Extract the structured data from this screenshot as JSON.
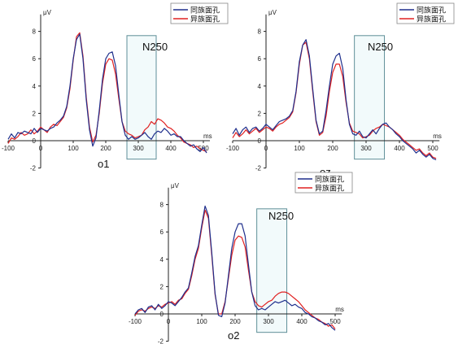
{
  "chart_data": [
    {
      "type": "line",
      "channel": "o1",
      "xunit": "ms",
      "yunit": "μV",
      "xlim": [
        -100,
        520
      ],
      "ylim": [
        -2,
        9
      ],
      "xticks": [
        -100,
        0,
        100,
        200,
        300,
        400,
        500
      ],
      "yticks": [
        -2,
        0,
        2,
        4,
        6,
        8
      ],
      "window_label": "N250",
      "window": [
        265,
        355
      ],
      "legend": [
        "同族面孔",
        "异族面孔"
      ],
      "series": [
        {
          "name": "同族面孔",
          "color": "#1f2f8c",
          "x": [
            -100,
            -90,
            -80,
            -70,
            -60,
            -50,
            -40,
            -30,
            -20,
            -10,
            0,
            10,
            20,
            30,
            40,
            50,
            60,
            70,
            80,
            90,
            100,
            110,
            120,
            130,
            140,
            150,
            160,
            170,
            180,
            190,
            200,
            210,
            220,
            230,
            240,
            250,
            260,
            270,
            280,
            290,
            300,
            310,
            320,
            330,
            340,
            350,
            360,
            370,
            380,
            390,
            400,
            410,
            420,
            430,
            440,
            450,
            460,
            470,
            480,
            490,
            500,
            510
          ],
          "y": [
            0.1,
            0.5,
            0.2,
            0.6,
            0.5,
            0.7,
            0.6,
            0.5,
            0.9,
            0.6,
            0.9,
            0.8,
            0.7,
            0.9,
            1.0,
            1.3,
            1.5,
            1.8,
            2.5,
            4.0,
            6.0,
            7.4,
            7.8,
            6.0,
            3.0,
            0.8,
            -0.4,
            0.2,
            2.2,
            4.5,
            6.0,
            6.4,
            6.5,
            5.5,
            3.4,
            1.4,
            0.4,
            0.1,
            0.3,
            0.1,
            0.2,
            0.4,
            0.6,
            0.3,
            0.1,
            0.5,
            0.7,
            0.6,
            0.9,
            0.7,
            0.4,
            0.5,
            0.3,
            0.3,
            0.0,
            -0.2,
            -0.4,
            -0.3,
            -0.6,
            -0.8,
            -0.5,
            -0.9
          ]
        },
        {
          "name": "异族面孔",
          "color": "#e02020",
          "x": [
            -100,
            -90,
            -80,
            -70,
            -60,
            -50,
            -40,
            -30,
            -20,
            -10,
            0,
            10,
            20,
            30,
            40,
            50,
            60,
            70,
            80,
            90,
            100,
            110,
            120,
            130,
            140,
            150,
            160,
            170,
            180,
            190,
            200,
            210,
            220,
            230,
            240,
            250,
            260,
            270,
            280,
            290,
            300,
            310,
            320,
            330,
            340,
            350,
            360,
            370,
            380,
            390,
            400,
            410,
            420,
            430,
            440,
            450,
            460,
            470,
            480,
            490,
            500,
            510
          ],
          "y": [
            -0.2,
            0.2,
            0.1,
            0.3,
            0.6,
            0.4,
            0.5,
            0.8,
            0.5,
            0.7,
            1.0,
            0.8,
            0.6,
            1.0,
            1.2,
            1.1,
            1.4,
            1.7,
            2.4,
            3.8,
            5.9,
            7.6,
            7.9,
            6.2,
            3.2,
            1.0,
            -0.1,
            0.4,
            2.0,
            4.2,
            5.6,
            6.0,
            5.9,
            4.9,
            3.1,
            1.4,
            0.7,
            0.5,
            0.4,
            0.2,
            0.3,
            0.4,
            0.8,
            1.0,
            1.4,
            1.2,
            1.6,
            1.5,
            1.3,
            1.0,
            0.9,
            0.7,
            0.4,
            0.2,
            -0.1,
            -0.2,
            -0.3,
            -0.5,
            -0.4,
            -0.6,
            -0.7,
            -0.8
          ]
        }
      ]
    },
    {
      "type": "line",
      "channel": "oz",
      "xunit": "ms",
      "yunit": "μV",
      "xlim": [
        -100,
        520
      ],
      "ylim": [
        -2,
        9
      ],
      "xticks": [
        -100,
        0,
        100,
        200,
        300,
        400,
        500
      ],
      "yticks": [
        -2,
        0,
        2,
        4,
        6,
        8
      ],
      "window_label": "N250",
      "window": [
        265,
        355
      ],
      "legend": [
        "同族面孔",
        "异族面孔"
      ],
      "series": [
        {
          "name": "同族面孔",
          "color": "#1f2f8c",
          "x": [
            -100,
            -90,
            -80,
            -70,
            -60,
            -50,
            -40,
            -30,
            -20,
            -10,
            0,
            10,
            20,
            30,
            40,
            50,
            60,
            70,
            80,
            90,
            100,
            110,
            120,
            130,
            140,
            150,
            160,
            170,
            180,
            190,
            200,
            210,
            220,
            230,
            240,
            250,
            260,
            270,
            280,
            290,
            300,
            310,
            320,
            330,
            340,
            350,
            360,
            370,
            380,
            390,
            400,
            410,
            420,
            430,
            440,
            450,
            460,
            470,
            480,
            490,
            500,
            510
          ],
          "y": [
            0.5,
            0.9,
            0.4,
            0.8,
            1.0,
            0.6,
            0.9,
            1.0,
            0.7,
            0.9,
            1.2,
            1.0,
            0.8,
            1.1,
            1.4,
            1.5,
            1.6,
            1.8,
            2.2,
            3.6,
            5.8,
            7.0,
            7.4,
            6.2,
            3.8,
            1.5,
            0.5,
            0.7,
            2.2,
            4.0,
            5.6,
            6.2,
            6.4,
            5.3,
            3.0,
            1.2,
            0.5,
            0.4,
            0.7,
            0.3,
            0.2,
            0.5,
            0.8,
            0.5,
            0.9,
            1.2,
            1.3,
            1.0,
            0.8,
            0.5,
            0.3,
            0.0,
            -0.2,
            -0.4,
            -0.6,
            -0.9,
            -0.7,
            -1.0,
            -1.2,
            -1.0,
            -1.3,
            -1.4
          ]
        },
        {
          "name": "异族面孔",
          "color": "#e02020",
          "x": [
            -100,
            -90,
            -80,
            -70,
            -60,
            -50,
            -40,
            -30,
            -20,
            -10,
            0,
            10,
            20,
            30,
            40,
            50,
            60,
            70,
            80,
            90,
            100,
            110,
            120,
            130,
            140,
            150,
            160,
            170,
            180,
            190,
            200,
            210,
            220,
            230,
            240,
            250,
            260,
            270,
            280,
            290,
            300,
            310,
            320,
            330,
            340,
            350,
            360,
            370,
            380,
            390,
            400,
            410,
            420,
            430,
            440,
            450,
            460,
            470,
            480,
            490,
            500,
            510
          ],
          "y": [
            0.2,
            0.6,
            0.3,
            0.5,
            0.8,
            0.5,
            0.7,
            0.9,
            0.6,
            0.8,
            1.0,
            0.9,
            0.7,
            1.0,
            1.2,
            1.3,
            1.5,
            1.7,
            2.1,
            3.5,
            5.6,
            7.0,
            7.2,
            6.0,
            3.6,
            1.4,
            0.4,
            0.6,
            1.8,
            3.6,
            5.0,
            5.6,
            5.6,
            4.7,
            2.8,
            1.3,
            0.7,
            0.6,
            0.5,
            0.2,
            0.3,
            0.4,
            0.7,
            0.9,
            1.0,
            1.2,
            1.1,
            1.0,
            0.8,
            0.6,
            0.4,
            0.1,
            -0.1,
            -0.3,
            -0.5,
            -0.7,
            -0.6,
            -0.9,
            -1.1,
            -0.9,
            -1.2,
            -1.3
          ]
        }
      ]
    },
    {
      "type": "line",
      "channel": "o2",
      "xunit": "ms",
      "yunit": "μV",
      "xlim": [
        -100,
        520
      ],
      "ylim": [
        -2,
        9
      ],
      "xticks": [
        -100,
        0,
        100,
        200,
        300,
        400,
        500
      ],
      "yticks": [
        -2,
        0,
        2,
        4,
        6,
        8
      ],
      "window_label": "N250",
      "window": [
        265,
        355
      ],
      "legend": [
        "同族面孔",
        "异族面孔"
      ],
      "series": [
        {
          "name": "同族面孔",
          "color": "#1f2f8c",
          "x": [
            -100,
            -90,
            -80,
            -70,
            -60,
            -50,
            -40,
            -30,
            -20,
            -10,
            0,
            10,
            20,
            30,
            40,
            50,
            60,
            70,
            80,
            90,
            100,
            110,
            120,
            130,
            140,
            150,
            160,
            170,
            180,
            190,
            200,
            210,
            220,
            230,
            240,
            250,
            260,
            270,
            280,
            290,
            300,
            310,
            320,
            330,
            340,
            350,
            360,
            370,
            380,
            390,
            400,
            410,
            420,
            430,
            440,
            450,
            460,
            470,
            480,
            490,
            500
          ],
          "y": [
            0.0,
            0.3,
            0.4,
            0.1,
            0.5,
            0.6,
            0.3,
            0.7,
            0.4,
            0.6,
            0.9,
            0.8,
            0.6,
            0.9,
            1.2,
            1.6,
            1.9,
            3.0,
            4.2,
            5.0,
            6.5,
            7.9,
            7.2,
            4.5,
            1.5,
            -0.1,
            -0.2,
            0.8,
            2.8,
            4.8,
            6.0,
            6.6,
            6.6,
            5.7,
            3.6,
            1.6,
            0.6,
            0.3,
            0.4,
            0.3,
            0.5,
            0.7,
            0.9,
            0.8,
            0.9,
            1.0,
            0.8,
            0.6,
            0.7,
            0.5,
            0.4,
            0.1,
            0.0,
            -0.2,
            -0.3,
            -0.5,
            -0.6,
            -0.8,
            -0.7,
            -1.0,
            -1.2
          ]
        },
        {
          "name": "异族面孔",
          "color": "#e02020",
          "x": [
            -100,
            -90,
            -80,
            -70,
            -60,
            -50,
            -40,
            -30,
            -20,
            -10,
            0,
            10,
            20,
            30,
            40,
            50,
            60,
            70,
            80,
            90,
            100,
            110,
            120,
            130,
            140,
            150,
            160,
            170,
            180,
            190,
            200,
            210,
            220,
            230,
            240,
            250,
            260,
            270,
            280,
            290,
            300,
            310,
            320,
            330,
            340,
            350,
            360,
            370,
            380,
            390,
            400,
            410,
            420,
            430,
            440,
            450,
            460,
            470,
            480,
            490,
            500
          ],
          "y": [
            -0.1,
            0.2,
            0.3,
            0.2,
            0.4,
            0.5,
            0.4,
            0.6,
            0.5,
            0.7,
            0.8,
            0.9,
            0.7,
            1.0,
            1.1,
            1.5,
            1.8,
            2.8,
            4.0,
            4.8,
            6.3,
            7.6,
            7.0,
            4.3,
            1.4,
            0.0,
            0.0,
            0.9,
            2.6,
            4.3,
            5.4,
            5.7,
            5.6,
            4.9,
            3.2,
            1.6,
            0.9,
            0.6,
            0.5,
            0.7,
            0.9,
            1.0,
            1.3,
            1.5,
            1.6,
            1.6,
            1.5,
            1.3,
            1.1,
            0.9,
            0.6,
            0.3,
            0.1,
            -0.1,
            -0.3,
            -0.4,
            -0.6,
            -0.7,
            -0.9,
            -0.8,
            -1.1
          ]
        }
      ]
    }
  ]
}
